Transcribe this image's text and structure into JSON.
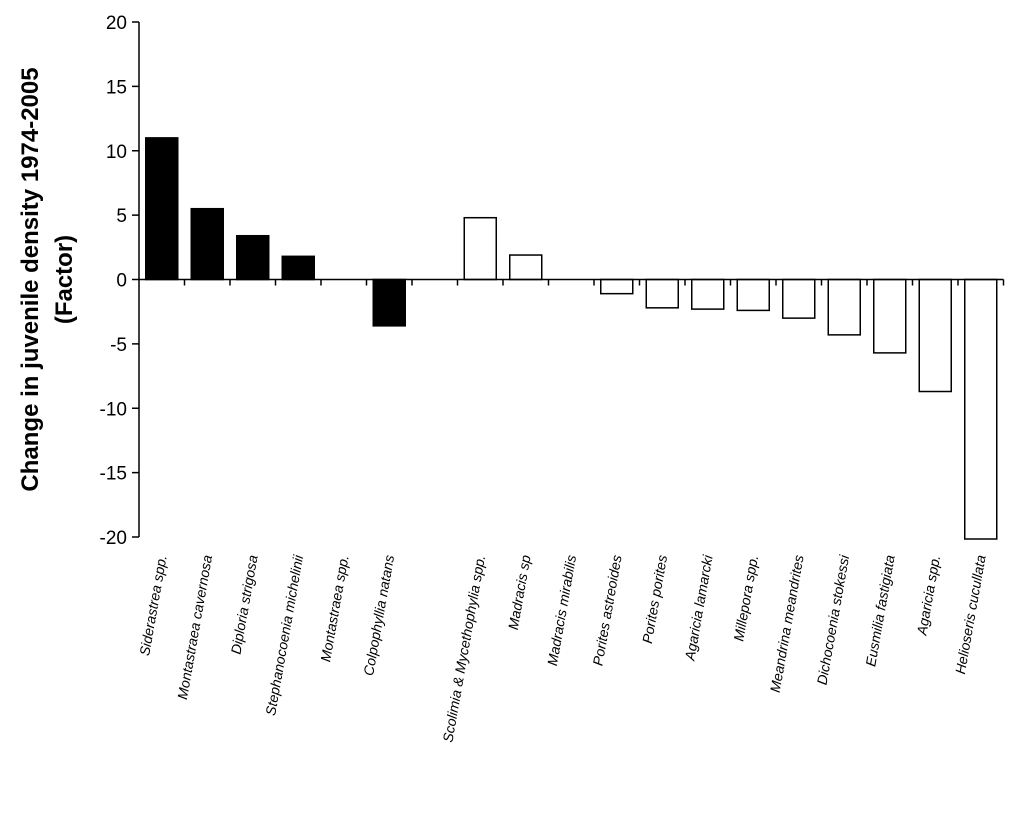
{
  "chart_data": {
    "type": "bar",
    "title": "",
    "xlabel": "",
    "ylabel": [
      "Change in juvenile density 1974-2005",
      "(Factor)"
    ],
    "ylim": [
      -20,
      20
    ],
    "yticks": [
      20,
      15,
      10,
      5,
      0,
      -5,
      -10,
      -15,
      -20
    ],
    "grid": false,
    "legend": "none",
    "colors": {
      "black": "#000000",
      "white": "#ffffff"
    },
    "categories": [
      "Siderastrea spp.",
      "Montastraea cavernosa",
      "Diploria strigosa",
      "Stephanocoenia michelinii",
      "Montastraea spp.",
      "Colpophyllia natans",
      "",
      "Scolimia & Mycethophylia spp.",
      "Madracis sp",
      "Madracis mirabilis",
      "Porites astreoides",
      "Porites porites",
      "Agaricia lamarcki",
      "Millepora spp.",
      "Meandrina meandrites",
      "Dichocoenia stokessi",
      "Eusmilia fastigiata",
      "Agaricia spp.",
      "Helioseris cucullata"
    ],
    "values": [
      11,
      5.5,
      3.4,
      1.8,
      0,
      -3.6,
      0,
      4.8,
      1.9,
      0,
      -1.1,
      -2.2,
      -2.3,
      -2.4,
      -3.0,
      -4.3,
      -5.7,
      -8.7,
      -20
    ],
    "fills": [
      "black",
      "black",
      "black",
      "black",
      "black",
      "black",
      "none",
      "white",
      "white",
      "white",
      "white",
      "white",
      "white",
      "white",
      "white",
      "white",
      "white",
      "white",
      "white"
    ]
  }
}
